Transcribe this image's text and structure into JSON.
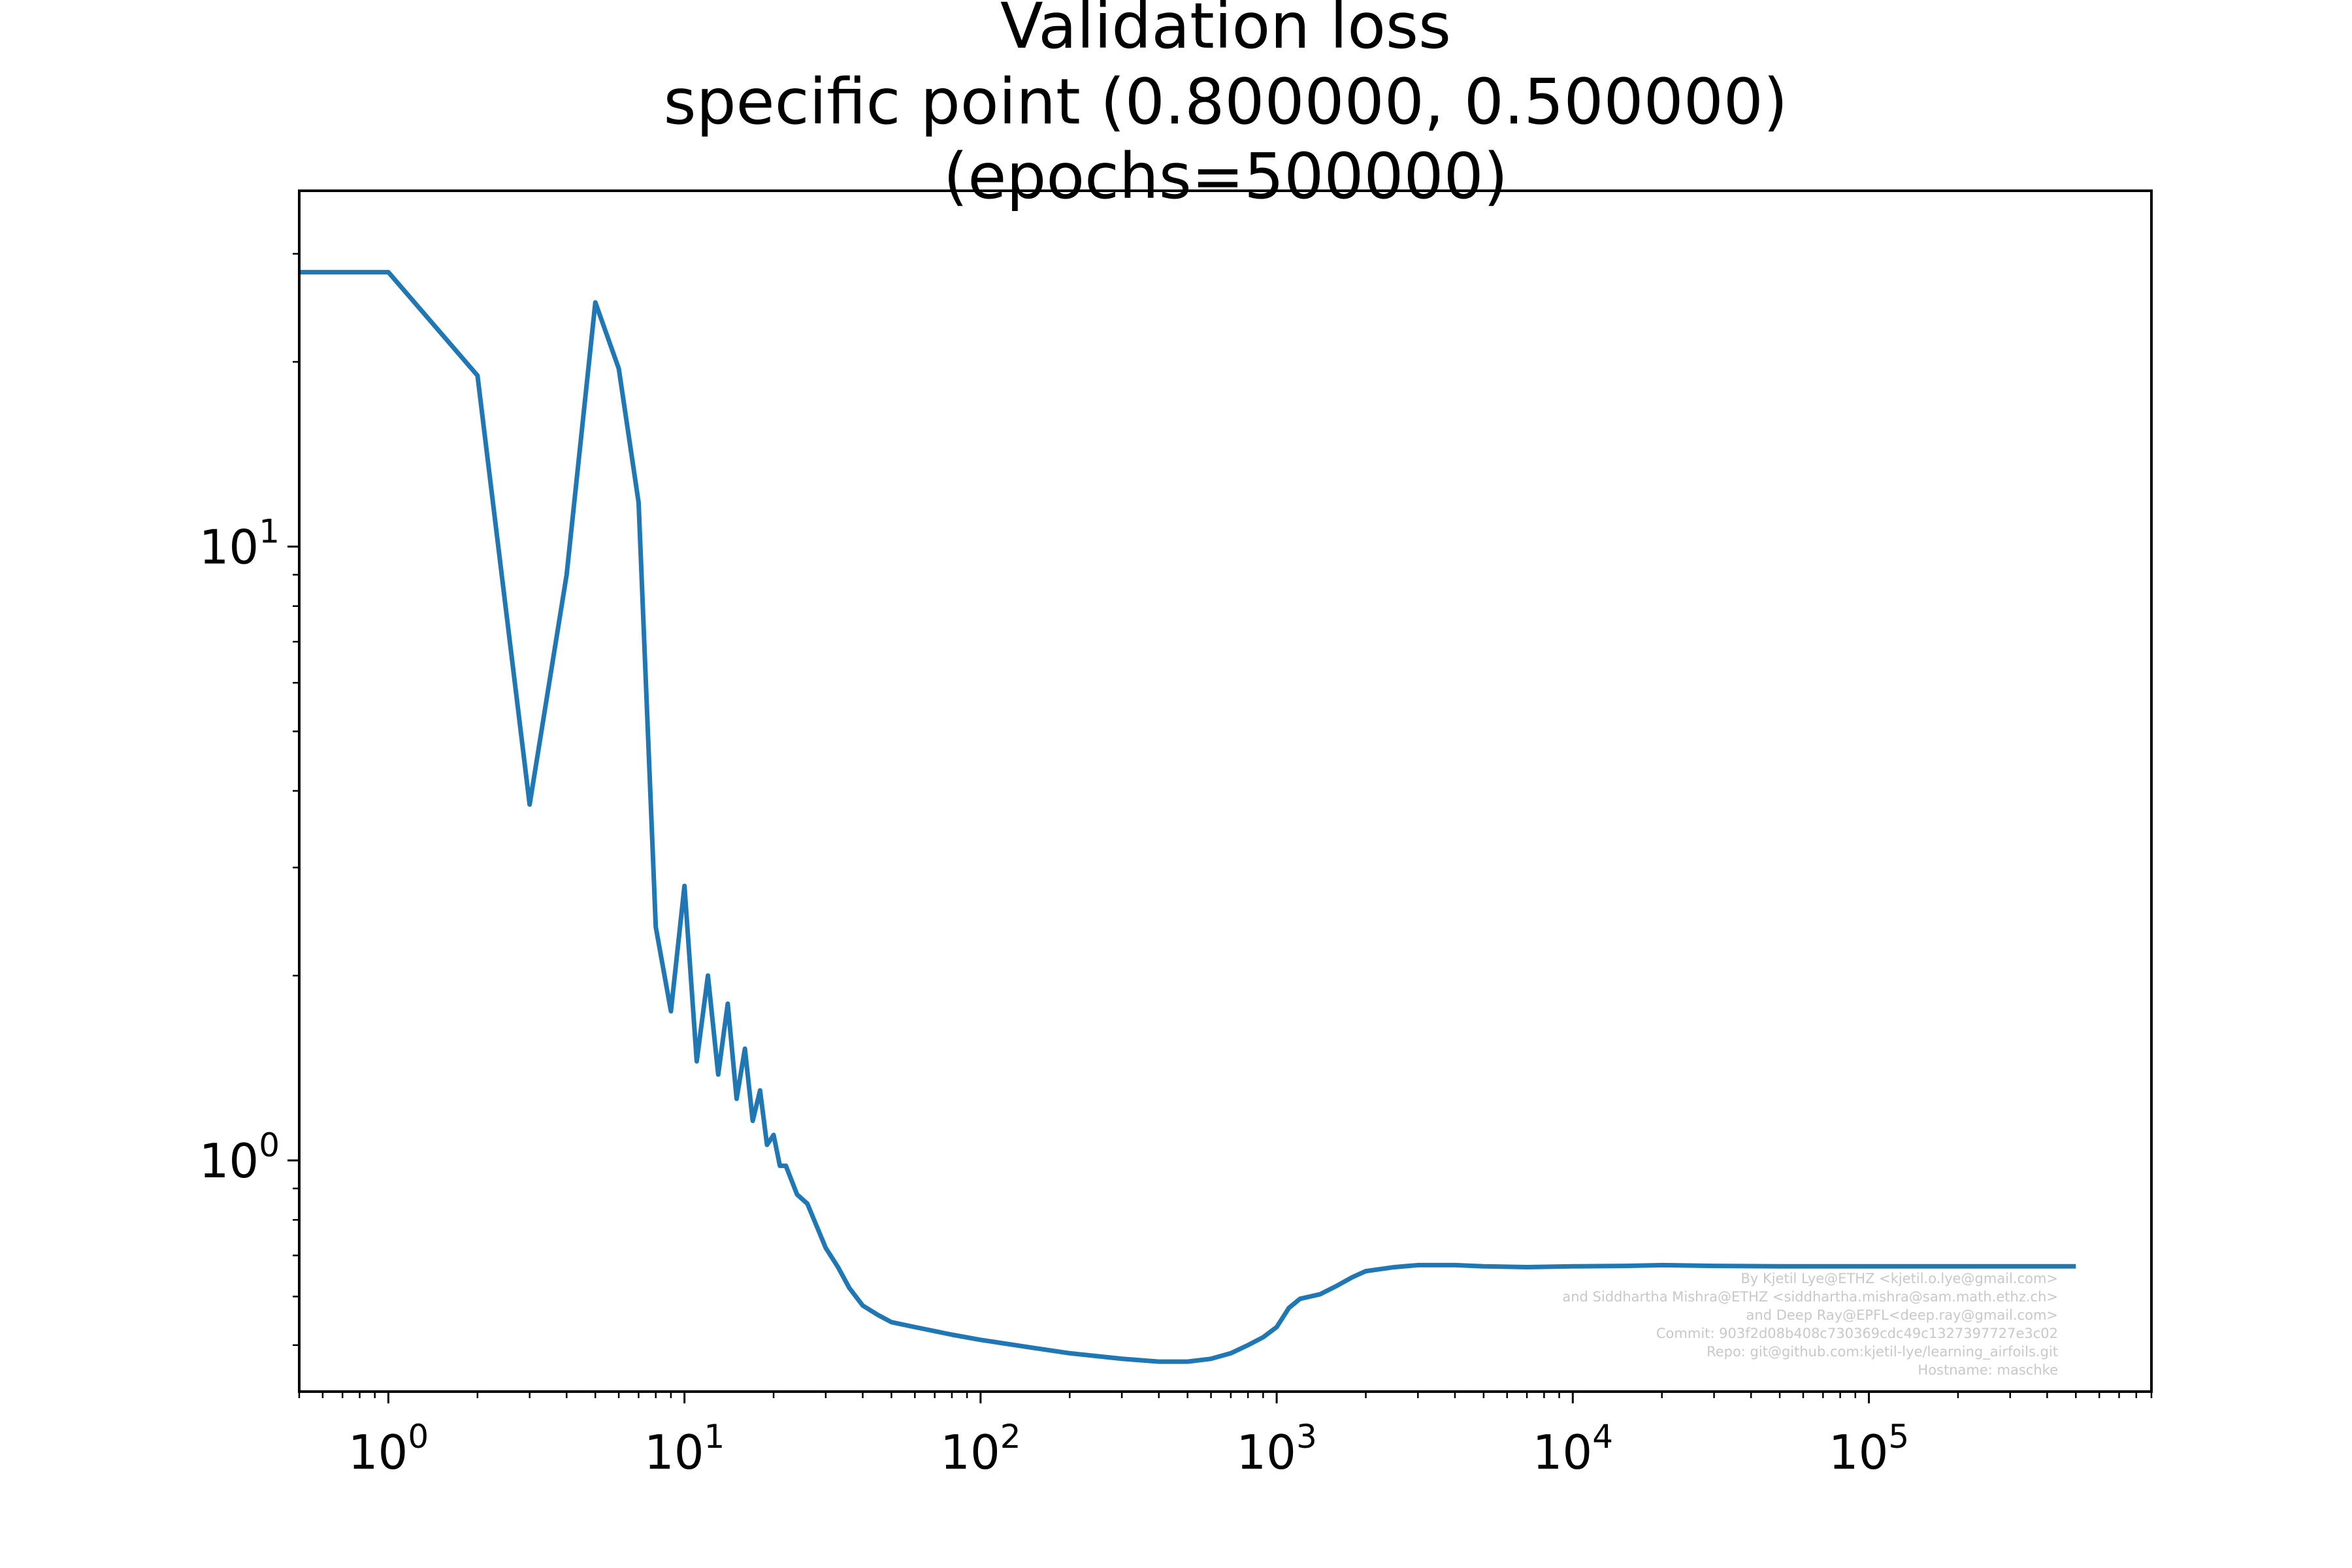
{
  "chart_data": {
    "type": "line",
    "title_lines": [
      "Validation loss",
      "specific point  (0.800000, 0.500000)",
      "(epochs=500000)"
    ],
    "xlabel": "",
    "ylabel": "",
    "x_scale": "log",
    "y_scale": "log",
    "xlim": [
      0.5,
      900000
    ],
    "ylim": [
      0.42,
      38
    ],
    "grid": false,
    "x_ticks": [
      {
        "base": "10",
        "exp": "0",
        "value": 1
      },
      {
        "base": "10",
        "exp": "1",
        "value": 10
      },
      {
        "base": "10",
        "exp": "2",
        "value": 100
      },
      {
        "base": "10",
        "exp": "3",
        "value": 1000
      },
      {
        "base": "10",
        "exp": "4",
        "value": 10000
      },
      {
        "base": "10",
        "exp": "5",
        "value": 100000
      }
    ],
    "y_ticks": [
      {
        "base": "10",
        "exp": "0",
        "value": 1
      },
      {
        "base": "10",
        "exp": "1",
        "value": 10
      }
    ],
    "series": [
      {
        "color": "#1f77b4",
        "x": [
          0.5,
          1,
          2,
          3,
          4,
          5,
          6,
          7,
          8,
          9,
          10,
          11,
          12,
          13,
          14,
          15,
          16,
          17,
          18,
          19,
          20,
          21,
          22,
          24,
          26,
          28,
          30,
          33,
          36,
          40,
          45,
          50,
          60,
          80,
          100,
          150,
          200,
          300,
          400,
          500,
          600,
          700,
          800,
          900,
          1000,
          1100,
          1200,
          1400,
          1600,
          1800,
          2000,
          2500,
          3000,
          4000,
          5000,
          7000,
          10000,
          15000,
          20000,
          30000,
          50000,
          100000,
          200000,
          500000
        ],
        "y": [
          28,
          28,
          19,
          3.8,
          9,
          25,
          19.5,
          11.8,
          2.4,
          1.75,
          2.8,
          1.45,
          2.0,
          1.38,
          1.8,
          1.26,
          1.52,
          1.16,
          1.3,
          1.06,
          1.1,
          0.98,
          0.98,
          0.88,
          0.85,
          0.78,
          0.72,
          0.67,
          0.62,
          0.58,
          0.56,
          0.545,
          0.535,
          0.52,
          0.51,
          0.495,
          0.485,
          0.475,
          0.47,
          0.47,
          0.475,
          0.485,
          0.5,
          0.515,
          0.535,
          0.575,
          0.595,
          0.605,
          0.625,
          0.645,
          0.66,
          0.67,
          0.675,
          0.675,
          0.672,
          0.67,
          0.672,
          0.673,
          0.675,
          0.673,
          0.672,
          0.672,
          0.672,
          0.672
        ]
      }
    ]
  },
  "credits": [
    "By Kjetil Lye@ETHZ <kjetil.o.lye@gmail.com>",
    "and Siddhartha Mishra@ETHZ <siddhartha.mishra@sam.math.ethz.ch>",
    "and Deep Ray@EPFL<deep.ray@gmail.com>",
    "Commit: 903f2d08b408c730369cdc49c1327397727e3c02",
    "Repo: git@github.com:kjetil-lye/learning_airfoils.git",
    "Hostname: maschke"
  ]
}
